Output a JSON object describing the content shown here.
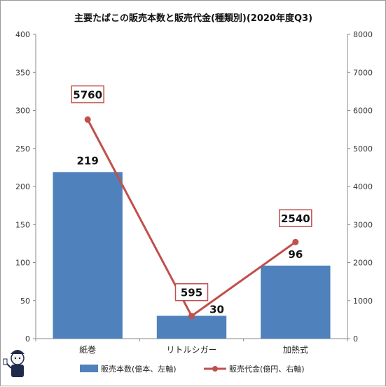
{
  "chart_data": {
    "type": "bar",
    "title": "主要たばこの販売本数と販売代金(種類別)(2020年度Q3)",
    "categories": [
      "紙巻",
      "リトルシガー",
      "加熱式"
    ],
    "series": [
      {
        "name": "販売本数(億本、左軸)",
        "type": "bar",
        "axis": "left",
        "values": [
          219,
          30,
          96
        ],
        "labels": [
          "219",
          "30",
          "96"
        ],
        "color": "#4f81bd"
      },
      {
        "name": "販売代金(億円、右軸)",
        "type": "line",
        "axis": "right",
        "values": [
          5760,
          595,
          2540
        ],
        "labels": [
          "5760",
          "595",
          "2540"
        ],
        "color": "#c0504d"
      }
    ],
    "y_left": {
      "range": [
        0,
        400
      ],
      "ticks": [
        "0",
        "50",
        "100",
        "150",
        "200",
        "250",
        "300",
        "350",
        "400"
      ]
    },
    "y_right": {
      "range": [
        0,
        8000
      ],
      "ticks": [
        "0",
        "1000",
        "2000",
        "3000",
        "4000",
        "5000",
        "6000",
        "7000",
        "8000"
      ]
    },
    "grid": false,
    "legend": "bottom"
  }
}
